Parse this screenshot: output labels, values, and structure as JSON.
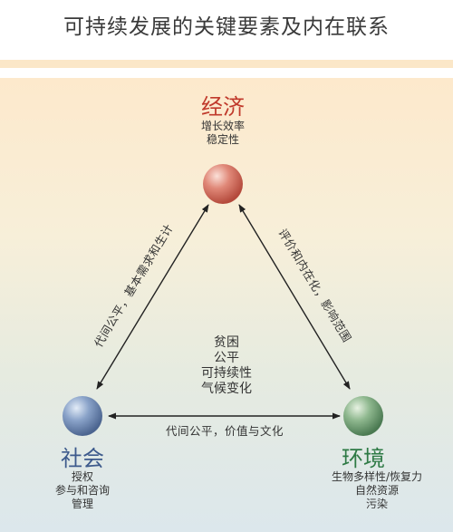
{
  "title": "可持续发展的关键要素及内在联系",
  "nodes": {
    "economy": {
      "label": "经济",
      "color": "#c0392b",
      "items": [
        "增长效率",
        "稳定性"
      ]
    },
    "society": {
      "label": "社会",
      "color": "#3d5a8c",
      "items": [
        "授权",
        "参与和咨询",
        "管理"
      ]
    },
    "environment": {
      "label": "环境",
      "color": "#2e7a45",
      "items": [
        "生物多样性/恢复力",
        "自然资源",
        "污染"
      ]
    }
  },
  "center_items": [
    "贫困",
    "公平",
    "可持续性",
    "气候变化"
  ],
  "edges": {
    "economy_society": "代间公平，基本需求和生计",
    "economy_environment": "评价和内在化，影响范围",
    "society_environment": "代间公平，价值与文化"
  }
}
